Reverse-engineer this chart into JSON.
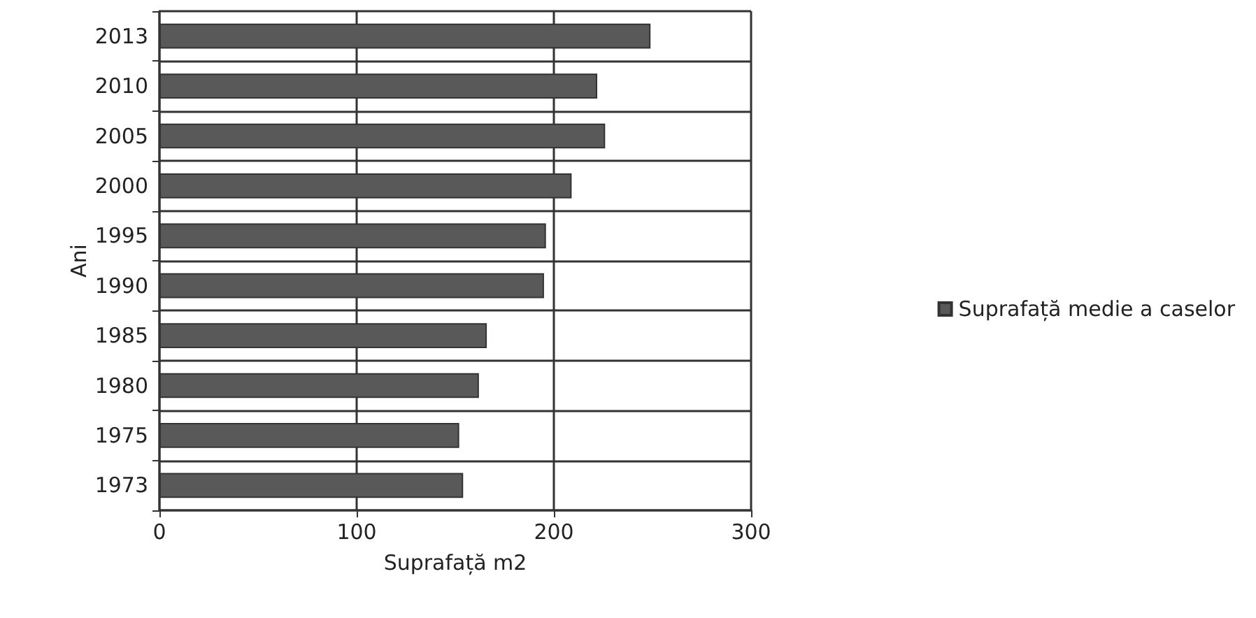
{
  "chart_data": {
    "type": "bar",
    "orientation": "horizontal",
    "xlabel": "Suprafață m2",
    "ylabel": "Ani",
    "categories": [
      "2013",
      "2010",
      "2005",
      "2000",
      "1995",
      "1990",
      "1985",
      "1980",
      "1975",
      "1973"
    ],
    "series": [
      {
        "name": "Suprafață medie a caselor",
        "color": "#595959",
        "values": [
          249,
          222,
          226,
          209,
          196,
          195,
          166,
          162,
          152,
          154
        ]
      }
    ],
    "xlim": [
      0,
      300
    ],
    "xticks": [
      0,
      100,
      200,
      300
    ],
    "grid": true,
    "legend": "right"
  }
}
